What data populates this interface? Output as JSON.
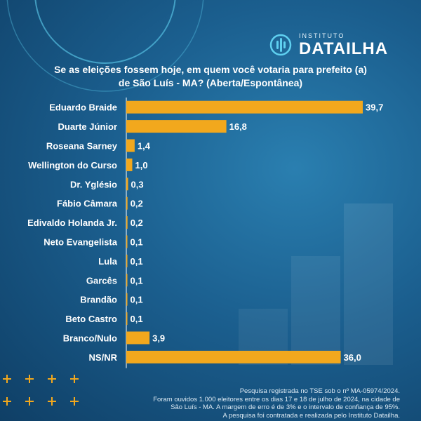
{
  "brand": {
    "institute": "INSTITUTO",
    "name": "DATAILHA"
  },
  "question": "Se as eleições fossem hoje, em quem você votaria para prefeito (a) de São Luís - MA? (Aberta/Espontânea)",
  "footnote": [
    "Pesquisa registrada no TSE sob o nº MA-05974/2024.",
    "Foram ouvidos 1.000 eleitores entre os dias 17 e 18 de julho de 2024, na cidade de",
    "São Luís - MA. A margem de erro é de 3% e o intervalo de confiança de 95%.",
    "A pesquisa foi contratada e realizada pelo Instituto Datailha."
  ],
  "colors": {
    "bar": "#f2a81d",
    "axis": "#ffffff",
    "text": "#ffffff"
  },
  "chart_data": {
    "type": "bar",
    "orientation": "horizontal",
    "title": "Se as eleições fossem hoje, em quem você votaria para prefeito (a) de São Luís - MA? (Aberta/Espontânea)",
    "categories": [
      "Eduardo Braide",
      "Duarte Júnior",
      "Roseana Sarney",
      "Wellington do Curso",
      "Dr. Yglésio",
      "Fábio Câmara",
      "Edivaldo Holanda Jr.",
      "Neto Evangelista",
      "Lula",
      "Garcês",
      "Brandão",
      "Beto Castro",
      "Branco/Nulo",
      "NS/NR"
    ],
    "values": [
      39.7,
      16.8,
      1.4,
      1.0,
      0.3,
      0.2,
      0.2,
      0.1,
      0.1,
      0.1,
      0.1,
      0.1,
      3.9,
      36.0
    ],
    "value_labels": [
      "39,7",
      "16,8",
      "1,4",
      "1,0",
      "0,3",
      "0,2",
      "0,2",
      "0,1",
      "0,1",
      "0,1",
      "0,1",
      "0,1",
      "3,9",
      "36,0"
    ],
    "xlim": [
      0,
      39.7
    ],
    "grid": false,
    "legend": "none"
  }
}
